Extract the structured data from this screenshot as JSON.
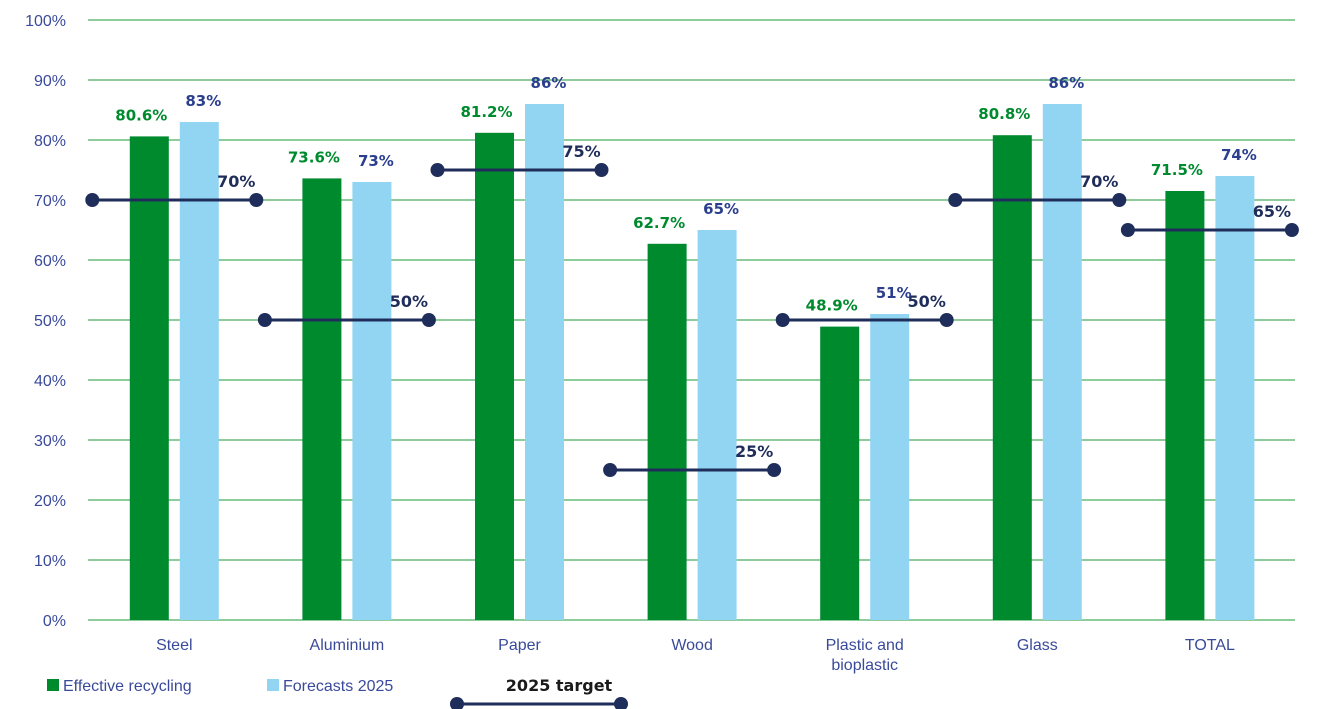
{
  "chart_data": {
    "type": "bar",
    "categories": [
      [
        "Steel"
      ],
      [
        "Aluminium"
      ],
      [
        "Paper"
      ],
      [
        "Wood"
      ],
      [
        "Plastic and",
        "bioplastic"
      ],
      [
        "Glass"
      ],
      [
        "TOTAL"
      ]
    ],
    "series": [
      {
        "name": "Effective recycling",
        "color": "#008a2e",
        "label_color": "#008a2e",
        "values": [
          80.6,
          73.6,
          81.2,
          62.7,
          48.9,
          80.8,
          71.5
        ],
        "labels": [
          "80.6%",
          "73.6%",
          "81.2%",
          "62.7%",
          "48.9%",
          "80.8%",
          "71.5%"
        ]
      },
      {
        "name": "Forecasts 2025",
        "color": "#92d5f2",
        "label_color": "#2b3f8e",
        "values": [
          83,
          73,
          86,
          65,
          51,
          86,
          74
        ],
        "labels": [
          "83%",
          "73%",
          "86%",
          "65%",
          "51%",
          "86%",
          "74%"
        ]
      }
    ],
    "targets": {
      "name": "2025 target",
      "color": "#1f2d5a",
      "values": [
        70,
        50,
        75,
        25,
        50,
        70,
        65
      ],
      "labels": [
        "70%",
        "50%",
        "75%",
        "25%",
        "50%",
        "70%",
        "65%"
      ]
    },
    "yticks": [
      "0%",
      "10%",
      "20%",
      "30%",
      "40%",
      "50%",
      "60%",
      "70%",
      "80%",
      "90%",
      "100%"
    ],
    "ylim": [
      0,
      100
    ],
    "grid": true,
    "grid_color": "#1e9a3a",
    "legend_position": "bottom-left"
  }
}
